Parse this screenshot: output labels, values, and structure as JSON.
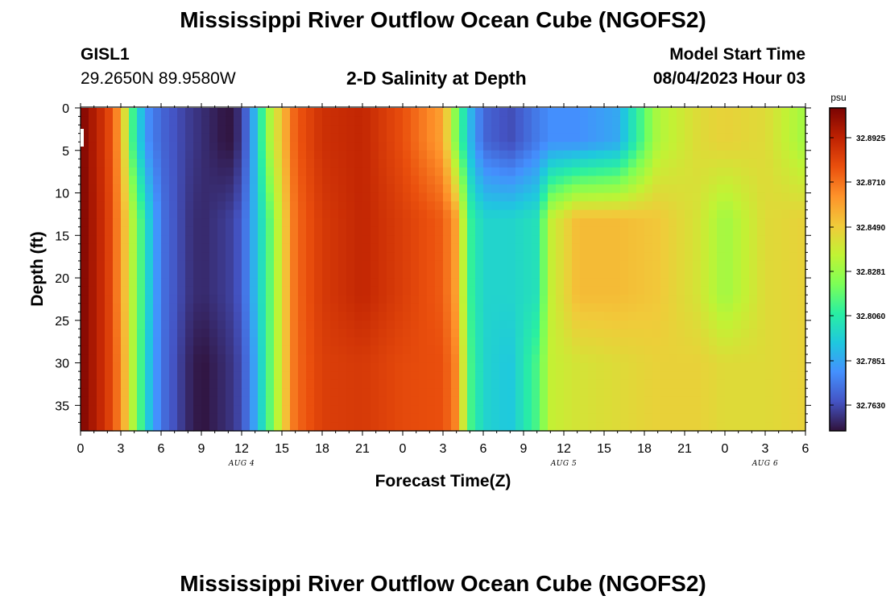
{
  "page": {
    "title_top": "Mississippi River Outflow Ocean Cube (NGOFS2)",
    "title_bottom": "Mississippi River Outflow Ocean Cube (NGOFS2)",
    "station_id": "GISL1",
    "station_coords": "29.2650N  89.9580W",
    "chart_title": "2-D Salinity at Depth",
    "model_start_label": "Model Start Time",
    "model_start_value": "08/04/2023 Hour 03"
  },
  "chart_data": {
    "type": "heatmap",
    "title": "2-D Salinity at Depth",
    "xlabel": "Forecast Time(Z)",
    "ylabel": "Depth (ft)",
    "x_tick_labels": [
      "0",
      "3",
      "6",
      "9",
      "12",
      "15",
      "18",
      "21",
      "0",
      "3",
      "6",
      "9",
      "12",
      "15",
      "18",
      "21",
      "0",
      "3",
      "6"
    ],
    "x_date_labels": [
      "AUG 4",
      "AUG 5",
      "AUG 6"
    ],
    "x_range_hours": [
      0,
      54
    ],
    "y_ticks": [
      0,
      5,
      10,
      15,
      20,
      25,
      30,
      35
    ],
    "y_range": [
      0,
      38
    ],
    "y_inverted": true,
    "colorbar": {
      "unit": "psu",
      "labels": [
        "32.8925",
        "32.8710",
        "32.8490",
        "32.8281",
        "32.8060",
        "32.7851",
        "32.7630"
      ],
      "colormap": [
        "#30123b",
        "#4454c4",
        "#4490fe",
        "#1fc8de",
        "#29efa2",
        "#7dff56",
        "#c1f334",
        "#f1ca3a",
        "#fe922a",
        "#ea4f0d",
        "#be2102",
        "#7a0403"
      ]
    },
    "column_profiles": [
      {
        "hour": 0,
        "top": 1.0,
        "mid": 1.0,
        "bot": 1.0
      },
      {
        "hour": 2,
        "top": 0.85,
        "mid": 0.86,
        "bot": 0.86
      },
      {
        "hour": 3,
        "top": 0.7,
        "mid": 0.72,
        "bot": 0.74
      },
      {
        "hour": 4,
        "top": 0.35,
        "mid": 0.5,
        "bot": 0.5
      },
      {
        "hour": 5,
        "top": 0.18,
        "mid": 0.3,
        "bot": 0.28
      },
      {
        "hour": 6,
        "top": 0.12,
        "mid": 0.14,
        "bot": 0.14
      },
      {
        "hour": 8,
        "top": 0.06,
        "mid": 0.05,
        "bot": 0.03
      },
      {
        "hour": 9,
        "top": 0.04,
        "mid": 0.03,
        "bot": 0.0
      },
      {
        "hour": 11,
        "top": 0.0,
        "mid": 0.06,
        "bot": 0.04
      },
      {
        "hour": 12,
        "top": 0.05,
        "mid": 0.1,
        "bot": 0.08
      },
      {
        "hour": 13,
        "top": 0.25,
        "mid": 0.25,
        "bot": 0.22
      },
      {
        "hour": 14,
        "top": 0.5,
        "mid": 0.4,
        "bot": 0.4
      },
      {
        "hour": 15,
        "top": 0.65,
        "mid": 0.6,
        "bot": 0.6
      },
      {
        "hour": 16,
        "top": 0.8,
        "mid": 0.78,
        "bot": 0.78
      },
      {
        "hour": 18,
        "top": 0.88,
        "mid": 0.86,
        "bot": 0.85
      },
      {
        "hour": 21,
        "top": 0.9,
        "mid": 0.9,
        "bot": 0.86
      },
      {
        "hour": 24,
        "top": 0.82,
        "mid": 0.85,
        "bot": 0.83
      },
      {
        "hour": 27,
        "top": 0.7,
        "mid": 0.8,
        "bot": 0.82
      },
      {
        "hour": 28,
        "top": 0.45,
        "mid": 0.7,
        "bot": 0.74
      },
      {
        "hour": 29,
        "top": 0.25,
        "mid": 0.38,
        "bot": 0.4
      },
      {
        "hour": 30,
        "top": 0.12,
        "mid": 0.3,
        "bot": 0.3
      },
      {
        "hour": 32,
        "top": 0.08,
        "mid": 0.3,
        "bot": 0.27
      },
      {
        "hour": 34,
        "top": 0.15,
        "mid": 0.33,
        "bot": 0.4
      },
      {
        "hour": 35,
        "top": 0.18,
        "mid": 0.55,
        "bot": 0.55
      },
      {
        "hour": 37,
        "top": 0.18,
        "mid": 0.66,
        "bot": 0.58
      },
      {
        "hour": 40,
        "top": 0.22,
        "mid": 0.66,
        "bot": 0.6
      },
      {
        "hour": 43,
        "top": 0.52,
        "mid": 0.64,
        "bot": 0.62
      },
      {
        "hour": 46,
        "top": 0.6,
        "mid": 0.58,
        "bot": 0.62
      },
      {
        "hour": 48,
        "top": 0.62,
        "mid": 0.5,
        "bot": 0.6
      },
      {
        "hour": 51,
        "top": 0.6,
        "mid": 0.6,
        "bot": 0.6
      },
      {
        "hour": 54,
        "top": 0.5,
        "mid": 0.62,
        "bot": 0.62
      }
    ]
  }
}
